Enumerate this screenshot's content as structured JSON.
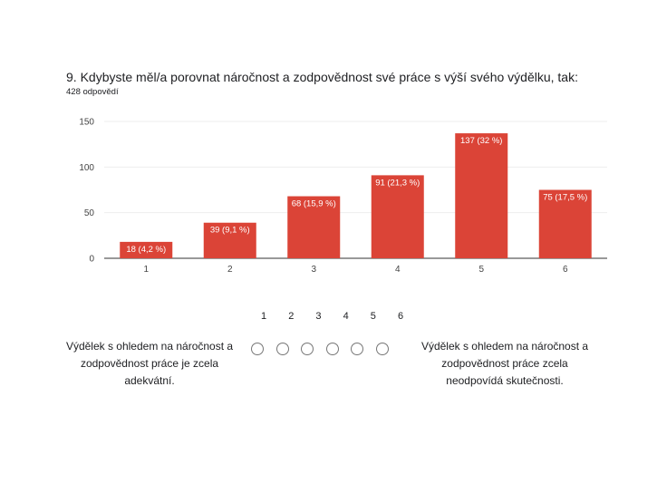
{
  "question": {
    "title": "9. Kdybyste měl/a porovnat náročnost a zodpovědnost své práce s výší svého výdělku, tak:",
    "responses": "428 odpovědí"
  },
  "chart_data": {
    "type": "bar",
    "categories": [
      "1",
      "2",
      "3",
      "4",
      "5",
      "6"
    ],
    "values": [
      18,
      39,
      68,
      91,
      137,
      75
    ],
    "data_labels": [
      "18 (4,2 %)",
      "39 (9,1 %)",
      "68 (15,9 %)",
      "91 (21,3 %)",
      "137 (32 %)",
      "75 (17,5 %)"
    ],
    "yticks": [
      "0",
      "50",
      "100",
      "150"
    ],
    "ylim": [
      0,
      150
    ],
    "grid": true,
    "bar_color": "#db4437"
  },
  "scale": {
    "numbers": [
      "1",
      "2",
      "3",
      "4",
      "5",
      "6"
    ],
    "left_label": "Výdělek s ohledem na náročnost a zodpovědnost práce je zcela adekvátní.",
    "right_label": "Výdělek s ohledem na náročnost a zodpovědnost práce zcela neodpovídá skutečnosti."
  }
}
